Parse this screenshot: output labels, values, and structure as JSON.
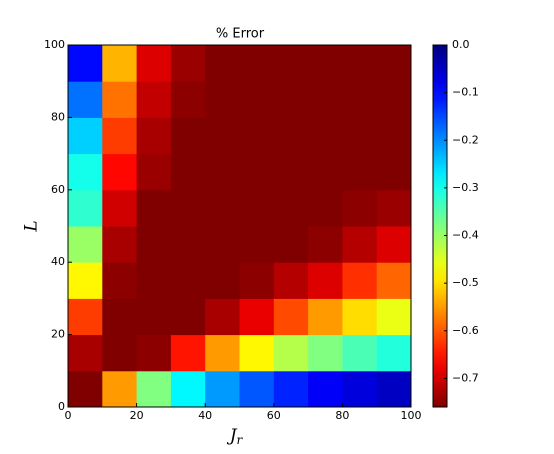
{
  "chart_data": {
    "type": "heatmap",
    "title": "% Error",
    "xlabel": "J",
    "xlabel_sub": "r",
    "ylabel": "L",
    "colormap": "jet_r",
    "xbins": [
      0,
      10,
      20,
      30,
      40,
      50,
      60,
      70,
      80,
      90,
      100
    ],
    "ybins": [
      0,
      10,
      20,
      30,
      40,
      50,
      60,
      70,
      80,
      90,
      100
    ],
    "values": [
      [
        -0.76,
        -0.55,
        -0.38,
        -0.28,
        -0.21,
        -0.16,
        -0.12,
        -0.09,
        -0.07,
        -0.05
      ],
      [
        -0.73,
        -0.76,
        -0.75,
        -0.65,
        -0.55,
        -0.48,
        -0.42,
        -0.38,
        -0.34,
        -0.31
      ],
      [
        -0.62,
        -0.76,
        -0.76,
        -0.76,
        -0.73,
        -0.68,
        -0.61,
        -0.55,
        -0.5,
        -0.46
      ],
      [
        -0.48,
        -0.75,
        -0.76,
        -0.76,
        -0.76,
        -0.75,
        -0.72,
        -0.69,
        -0.63,
        -0.59
      ],
      [
        -0.4,
        -0.73,
        -0.76,
        -0.76,
        -0.76,
        -0.76,
        -0.76,
        -0.75,
        -0.72,
        -0.69
      ],
      [
        -0.32,
        -0.7,
        -0.76,
        -0.76,
        -0.76,
        -0.76,
        -0.76,
        -0.76,
        -0.75,
        -0.74
      ],
      [
        -0.3,
        -0.66,
        -0.74,
        -0.76,
        -0.76,
        -0.76,
        -0.76,
        -0.76,
        -0.76,
        -0.76
      ],
      [
        -0.25,
        -0.62,
        -0.73,
        -0.76,
        -0.76,
        -0.76,
        -0.76,
        -0.76,
        -0.76,
        -0.76
      ],
      [
        -0.18,
        -0.58,
        -0.71,
        -0.75,
        -0.76,
        -0.76,
        -0.76,
        -0.76,
        -0.76,
        -0.76
      ],
      [
        -0.1,
        -0.53,
        -0.69,
        -0.74,
        -0.76,
        -0.76,
        -0.76,
        -0.76,
        -0.76,
        -0.76
      ]
    ],
    "xlim": [
      0,
      100
    ],
    "ylim": [
      0,
      100
    ],
    "xticks": [
      0,
      20,
      40,
      60,
      80,
      100
    ],
    "yticks": [
      0,
      20,
      40,
      60,
      80,
      100
    ],
    "clim": [
      -0.76,
      0
    ],
    "cticks": [
      {
        "value": 0,
        "label": "0.0"
      },
      {
        "value": -0.1,
        "label": "−0.1"
      },
      {
        "value": -0.2,
        "label": "−0.2"
      },
      {
        "value": -0.3,
        "label": "−0.3"
      },
      {
        "value": -0.4,
        "label": "−0.4"
      },
      {
        "value": -0.5,
        "label": "−0.5"
      },
      {
        "value": -0.6,
        "label": "−0.6"
      },
      {
        "value": -0.7,
        "label": "−0.7"
      }
    ]
  }
}
